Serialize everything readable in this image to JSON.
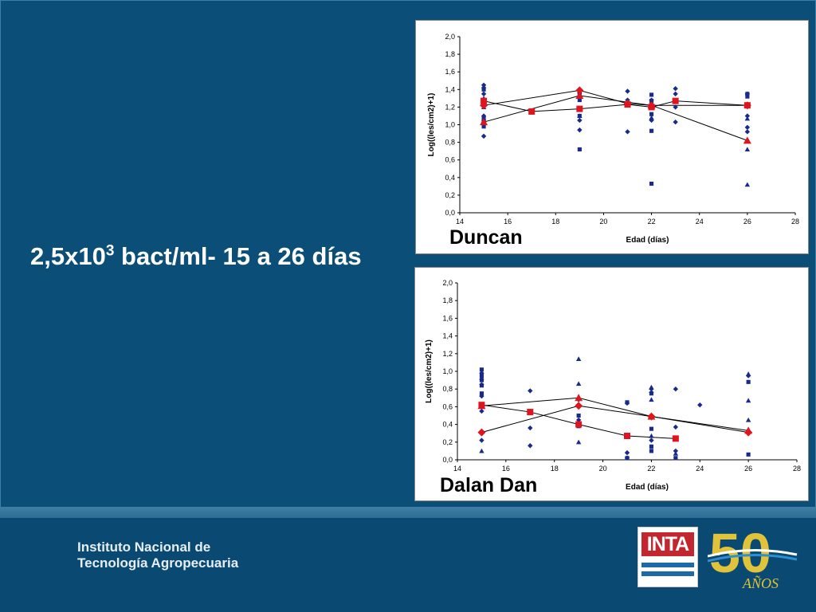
{
  "headline": {
    "main": "2,5x10",
    "sup": "3",
    "rest": " bact/ml- 15 a 26 días"
  },
  "footer": {
    "line1": "Instituto Nacional de",
    "line2": "Tecnología Agropecuaria"
  },
  "logo": {
    "inta_text": "INTA",
    "anniversary_number": "50",
    "anniversary_word": "AÑOS"
  },
  "colors": {
    "background": "#0b4e77",
    "blue_markers": "#1a2a8c",
    "red_markers": "#e0141e",
    "brand_red": "#c3262e"
  },
  "chart_data": [
    {
      "type": "scatter",
      "title": "Duncan",
      "xlabel": "Edad (días)",
      "ylabel": "Log((les/cm2)+1)",
      "xlim": [
        14,
        28
      ],
      "ylim": [
        0,
        2.0
      ],
      "xticks": [
        "14",
        "16",
        "18",
        "20",
        "22",
        "24",
        "26",
        "28"
      ],
      "yticks": [
        "0,0",
        "0,2",
        "0,4",
        "0,6",
        "0,8",
        "1,0",
        "1,2",
        "1,4",
        "1,6",
        "1,8",
        "2,0"
      ],
      "grid": false,
      "series": [
        {
          "marker": "diamond",
          "role": "observations",
          "x": [
            15,
            15,
            15,
            15,
            15,
            15,
            15,
            15,
            19,
            19,
            19,
            19,
            21,
            21,
            21,
            22,
            22,
            22,
            23,
            23,
            23,
            23,
            26,
            26,
            26,
            26
          ],
          "y": [
            1.45,
            1.42,
            1.35,
            1.28,
            1.1,
            1.05,
            1.0,
            0.87,
            1.36,
            1.18,
            1.05,
            0.94,
            1.38,
            1.28,
            0.92,
            1.28,
            1.22,
            1.05,
            1.41,
            1.35,
            1.2,
            1.03,
            1.35,
            1.1,
            0.97,
            0.92
          ]
        },
        {
          "marker": "square",
          "role": "observations",
          "x": [
            15,
            15,
            15,
            15,
            19,
            19,
            19,
            19,
            22,
            22,
            22,
            22,
            22,
            26,
            26
          ],
          "y": [
            1.4,
            1.25,
            1.08,
            0.98,
            1.34,
            1.28,
            1.1,
            0.72,
            1.34,
            1.27,
            1.12,
            0.93,
            0.33,
            1.35,
            1.32
          ]
        },
        {
          "marker": "triangle",
          "role": "observations",
          "x": [
            15,
            15,
            15,
            19,
            19,
            22,
            22,
            26,
            26,
            26
          ],
          "y": [
            1.3,
            1.2,
            1.05,
            1.35,
            1.1,
            1.25,
            1.08,
            1.07,
            0.72,
            0.32
          ]
        },
        {
          "marker": "diamond",
          "role": "mean",
          "x": [
            15,
            19,
            21,
            22,
            26
          ],
          "y": [
            1.22,
            1.39,
            1.24,
            1.22,
            1.22
          ]
        },
        {
          "marker": "square",
          "role": "mean",
          "x": [
            15,
            17,
            19,
            21,
            22,
            23,
            26
          ],
          "y": [
            1.27,
            1.15,
            1.18,
            1.23,
            1.2,
            1.27,
            1.22
          ]
        },
        {
          "marker": "triangle",
          "role": "mean",
          "x": [
            15,
            19,
            22,
            26
          ],
          "y": [
            1.03,
            1.33,
            1.22,
            0.82
          ]
        }
      ]
    },
    {
      "type": "scatter",
      "title": "Dalan Dan",
      "xlabel": "Edad (días)",
      "ylabel": "Log((les/cm2)+1)",
      "xlim": [
        14,
        28
      ],
      "ylim": [
        0,
        2.0
      ],
      "xticks": [
        "14",
        "16",
        "18",
        "20",
        "22",
        "24",
        "26",
        "28"
      ],
      "yticks": [
        "0,0",
        "0,2",
        "0,4",
        "0,6",
        "0,8",
        "1,0",
        "1,2",
        "1,4",
        "1,6",
        "1,8",
        "2,0"
      ],
      "grid": false,
      "series": [
        {
          "marker": "diamond",
          "role": "observations",
          "x": [
            15,
            15,
            15,
            15,
            15,
            15,
            15,
            17,
            17,
            17,
            17,
            19,
            19,
            19,
            21,
            21,
            21,
            22,
            22,
            22,
            22,
            23,
            23,
            23,
            24,
            26,
            26
          ],
          "y": [
            0.98,
            0.85,
            0.72,
            0.6,
            0.55,
            0.3,
            0.22,
            0.78,
            0.55,
            0.36,
            0.16,
            0.68,
            0.45,
            0.4,
            0.64,
            0.08,
            0.02,
            0.8,
            0.76,
            0.5,
            0.22,
            0.8,
            0.37,
            0.1,
            0.62,
            0.95,
            0.3
          ],
          "_comment": ""
        },
        {
          "marker": "square",
          "role": "observations",
          "x": [
            15,
            15,
            15,
            15,
            15,
            19,
            19,
            21,
            21,
            22,
            22,
            22,
            22,
            23,
            26,
            26
          ],
          "y": [
            1.02,
            0.95,
            0.9,
            0.84,
            0.75,
            0.5,
            0.38,
            0.65,
            0.02,
            0.75,
            0.35,
            0.15,
            0.1,
            0.02,
            0.88,
            0.06
          ]
        },
        {
          "marker": "triangle",
          "role": "observations",
          "x": [
            15,
            15,
            19,
            19,
            19,
            22,
            22,
            22,
            23,
            26,
            26,
            26
          ],
          "y": [
            0.93,
            0.1,
            1.14,
            0.86,
            0.2,
            0.82,
            0.68,
            0.27,
            0.07,
            0.97,
            0.67,
            0.45
          ]
        },
        {
          "marker": "diamond",
          "role": "mean",
          "x": [
            15,
            19,
            22,
            26
          ],
          "y": [
            0.31,
            0.61,
            0.49,
            0.31
          ]
        },
        {
          "marker": "square",
          "role": "mean",
          "x": [
            15,
            17,
            19,
            21,
            23
          ],
          "y": [
            0.62,
            0.54,
            0.4,
            0.27,
            0.24
          ]
        },
        {
          "marker": "triangle",
          "role": "mean",
          "x": [
            15,
            19,
            22,
            26
          ],
          "y": [
            0.61,
            0.7,
            0.49,
            0.33
          ]
        }
      ]
    }
  ]
}
